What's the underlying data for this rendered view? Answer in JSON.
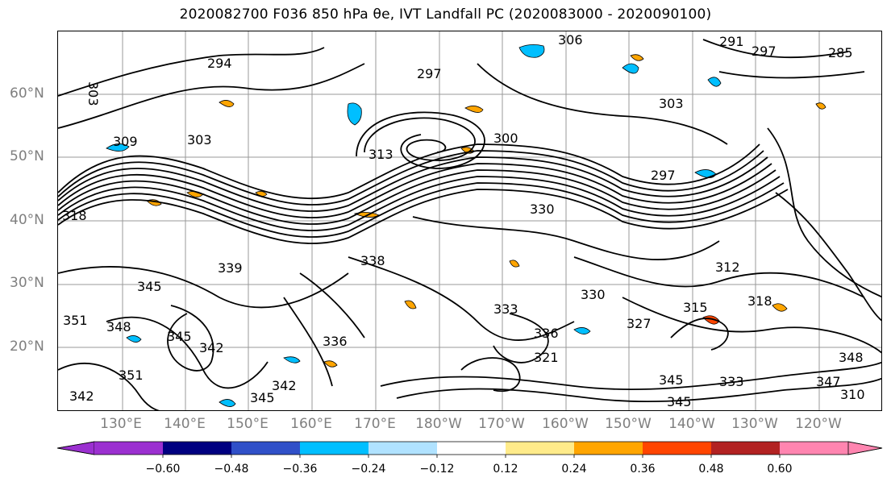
{
  "title": "2020082700 F036 850 hPa θe, IVT Landfall PC (2020083000 - 2020090100)",
  "map": {
    "latitude_labels": [
      "60°N",
      "50°N",
      "40°N",
      "30°N",
      "20°N"
    ],
    "longitude_labels": [
      "130°E",
      "140°E",
      "150°E",
      "160°E",
      "170°E",
      "180°W",
      "170°W",
      "160°W",
      "150°W",
      "140°W",
      "130°W",
      "120°W"
    ],
    "contour_labels": [
      "294",
      "303",
      "297",
      "291",
      "297",
      "306",
      "285",
      "303",
      "309",
      "303",
      "300",
      "313",
      "297",
      "330",
      "318",
      "330",
      "339",
      "345",
      "351",
      "348",
      "345",
      "342",
      "351",
      "342",
      "345",
      "342",
      "336",
      "333",
      "336",
      "321",
      "327",
      "345",
      "345",
      "333",
      "347",
      "348",
      "310",
      "315",
      "318",
      "312",
      "338"
    ]
  },
  "colorbar": {
    "ticks": [
      "−0.60",
      "−0.48",
      "−0.36",
      "−0.24",
      "−0.12",
      "0.12",
      "0.24",
      "0.36",
      "0.48",
      "0.60"
    ],
    "colors": [
      "#9b30d0",
      "#000080",
      "#3050c8",
      "#00bfff",
      "#b0e2ff",
      "#ffffff",
      "#ffeb8a",
      "#ffa500",
      "#ff4500",
      "#b22222",
      "#ff85b0",
      "#ff85b0"
    ]
  }
}
